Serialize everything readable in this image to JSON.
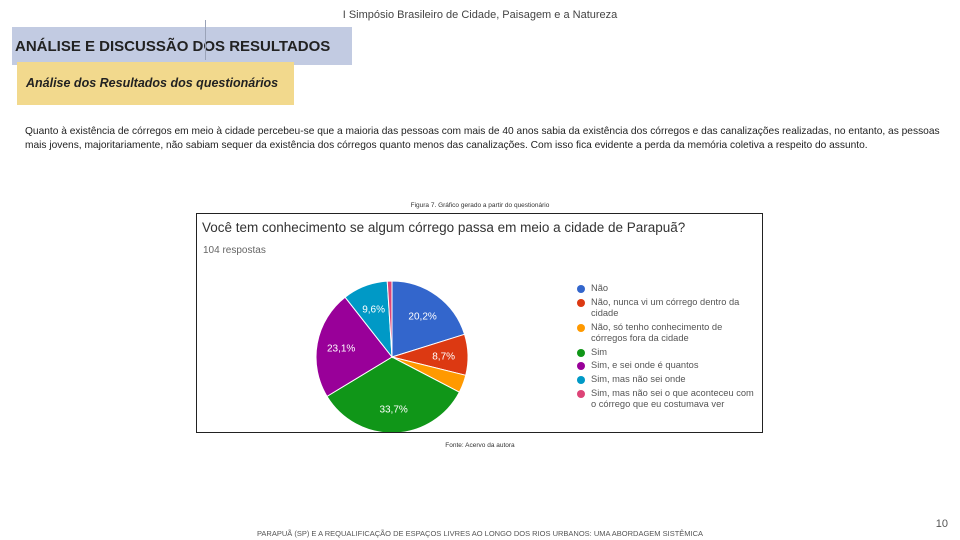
{
  "header": {
    "event": "I Simpósio Brasileiro de Cidade, Paisagem e a Natureza",
    "title": "ANÁLISE E DISCUSSÃO DOS RESULTADOS",
    "subtitle": "Análise dos Resultados dos questionários"
  },
  "body": {
    "paragraph": "Quanto à existência de córregos em meio à cidade percebeu-se que a maioria das pessoas com mais de 40 anos sabia da existência dos córregos e das canalizações realizadas, no entanto, as pessoas mais jovens, majoritariamente, não sabiam sequer da existência dos córregos quanto menos das canalizações. Com isso fica evidente a perda da memória coletiva a respeito do assunto."
  },
  "figure": {
    "caption": "Figura 7. Gráfico gerado a partir do questionário",
    "source": "Fonte: Acervo da autora"
  },
  "chart_data": {
    "type": "pie",
    "title": "Você tem conhecimento se algum córrego passa em meio a cidade de Parapuã?",
    "subtitle": "104 respostas",
    "slices": [
      {
        "label": "Não",
        "value": 20.2,
        "display": "20,2%",
        "color": "#3366cc"
      },
      {
        "label": "Não, nunca vi um córrego dentro da cidade",
        "value": 8.7,
        "display": "8,7%",
        "color": "#dc3912"
      },
      {
        "label": "Não, só tenho conhecimento de córregos fora da cidade",
        "value": 3.8,
        "display": "",
        "color": "#ff9900"
      },
      {
        "label": "Sim",
        "value": 33.7,
        "display": "33,7%",
        "color": "#109618"
      },
      {
        "label": "Sim, e sei onde é quantos",
        "value": 23.1,
        "display": "23,1%",
        "color": "#990099"
      },
      {
        "label": "Sim, mas não sei onde",
        "value": 9.6,
        "display": "9,6%",
        "color": "#0099c6"
      },
      {
        "label": "Sim, mas não sei o que aconteceu com o córrego que eu costumava ver",
        "value": 1.0,
        "display": "",
        "color": "#dd4477"
      }
    ],
    "legend_position": "right"
  },
  "footer": {
    "text": "PARAPUÃ (SP) E A REQUALIFICAÇÃO DE ESPAÇOS LIVRES AO LONGO DOS RIOS URBANOS: UMA ABORDAGEM SISTÊMICA",
    "page_number": "10"
  }
}
